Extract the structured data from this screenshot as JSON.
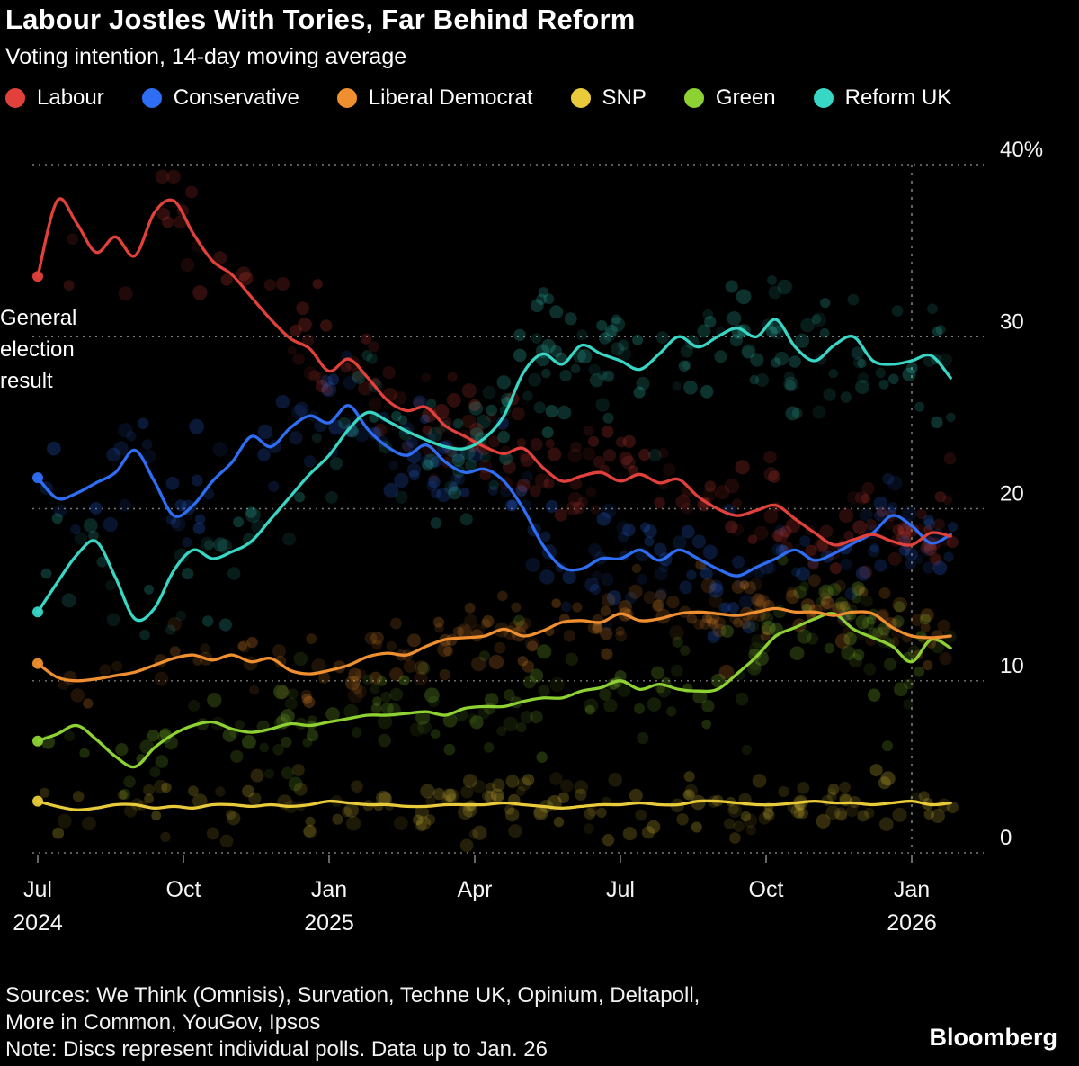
{
  "header": {
    "title": "Labour Jostles With Tories, Far Behind Reform",
    "subtitle": "Voting intention, 14-day moving average"
  },
  "annotation": {
    "lines": [
      "General",
      "election",
      "result"
    ]
  },
  "footer": {
    "sources_line1": "Sources: We Think (Omnisis), Survation, Techne UK, Opinium, Deltapoll,",
    "sources_line2": "More in Common, YouGov, Ipsos",
    "note": "Note: Discs represent individual polls. Data up to Jan. 26",
    "logo": "Bloomberg"
  },
  "chart_data": {
    "type": "line",
    "scatter_overlay": true,
    "scatter_note": "Discs represent individual polls",
    "title": "Labour Jostles With Tories, Far Behind Reform",
    "subtitle": "Voting intention, 14-day moving average",
    "units": "%",
    "grid": "horizontal-dotted",
    "legend_position": "top",
    "ylim": [
      0,
      40
    ],
    "xlim_months": [
      0,
      19.4
    ],
    "event_line_x": 18,
    "x_unit": "months since Jul 2024",
    "x": [
      0,
      0.4,
      0.8,
      1.2,
      1.6,
      2.0,
      2.4,
      2.8,
      3.2,
      3.6,
      4.0,
      4.4,
      4.8,
      5.2,
      5.6,
      6.0,
      6.4,
      6.8,
      7.2,
      7.6,
      8.0,
      8.4,
      8.8,
      9.2,
      9.6,
      10.0,
      10.4,
      10.8,
      11.2,
      11.6,
      12.0,
      12.4,
      12.8,
      13.2,
      13.6,
      14.0,
      14.4,
      14.8,
      15.2,
      15.6,
      16.0,
      16.4,
      16.8,
      17.2,
      17.6,
      18.0,
      18.4,
      18.8
    ],
    "x_ticks": [
      {
        "x": 0,
        "label": "Jul",
        "sublabel": "2024"
      },
      {
        "x": 3,
        "label": "Oct"
      },
      {
        "x": 6,
        "label": "Jan",
        "sublabel": "2025"
      },
      {
        "x": 9,
        "label": "Apr"
      },
      {
        "x": 12,
        "label": "Jul"
      },
      {
        "x": 15,
        "label": "Oct"
      },
      {
        "x": 18,
        "label": "Jan",
        "sublabel": "2026"
      }
    ],
    "y_ticks": [
      {
        "value": 0,
        "label": "0"
      },
      {
        "value": 10,
        "label": "10"
      },
      {
        "value": 20,
        "label": "20"
      },
      {
        "value": 30,
        "label": "30"
      },
      {
        "value": 40,
        "label": "40%"
      }
    ],
    "series": [
      {
        "name": "Labour",
        "color": "#e1413a",
        "scatter_sigma": 1.5,
        "scatter_count": 185,
        "values": [
          33.5,
          37.9,
          36.6,
          34.9,
          35.8,
          34.7,
          37.2,
          37.9,
          36.0,
          34.4,
          33.6,
          32.3,
          31.0,
          29.9,
          29.3,
          28.0,
          28.7,
          27.6,
          26.3,
          25.7,
          25.9,
          24.8,
          24.2,
          23.6,
          23.2,
          23.5,
          22.4,
          21.6,
          21.9,
          22.1,
          21.6,
          22.0,
          21.5,
          21.7,
          20.7,
          20.0,
          19.6,
          19.9,
          20.2,
          19.4,
          18.6,
          17.9,
          18.2,
          18.5,
          18.1,
          17.9,
          18.6,
          18.4
        ]
      },
      {
        "name": "Conservative",
        "color": "#2e6ef5",
        "scatter_sigma": 1.5,
        "scatter_count": 185,
        "values": [
          21.8,
          20.6,
          20.9,
          21.5,
          22.1,
          23.4,
          21.6,
          19.6,
          20.2,
          21.6,
          22.7,
          24.2,
          23.6,
          24.7,
          25.4,
          25.0,
          26.0,
          24.6,
          23.6,
          23.1,
          23.7,
          22.7,
          22.1,
          22.3,
          21.6,
          20.0,
          17.9,
          16.6,
          16.5,
          17.1,
          17.1,
          17.6,
          17.0,
          17.6,
          17.1,
          16.5,
          16.1,
          16.6,
          17.1,
          17.6,
          17.0,
          17.4,
          18.0,
          18.6,
          19.6,
          19.0,
          18.0,
          18.5
        ]
      },
      {
        "name": "Liberal Democrat",
        "color": "#ef8f2f",
        "scatter_sigma": 1.1,
        "scatter_count": 180,
        "values": [
          11.0,
          10.2,
          10.0,
          10.1,
          10.3,
          10.5,
          10.9,
          11.3,
          11.5,
          11.2,
          11.5,
          11.1,
          11.3,
          10.6,
          10.4,
          10.6,
          10.9,
          11.4,
          11.6,
          11.5,
          12.0,
          12.4,
          12.5,
          12.6,
          13.0,
          12.6,
          12.9,
          13.4,
          13.5,
          13.4,
          13.9,
          13.5,
          13.6,
          13.9,
          14.0,
          13.9,
          13.8,
          14.0,
          14.2,
          14.0,
          14.0,
          13.8,
          14.0,
          13.9,
          13.1,
          12.6,
          12.5,
          12.6
        ]
      },
      {
        "name": "SNP",
        "color": "#e8ca3a",
        "scatter_sigma": 0.9,
        "scatter_count": 165,
        "values": [
          3.0,
          2.7,
          2.5,
          2.6,
          2.8,
          2.8,
          2.6,
          2.7,
          2.6,
          2.8,
          2.8,
          2.7,
          2.8,
          2.7,
          2.8,
          3.0,
          2.9,
          2.8,
          2.8,
          2.7,
          2.7,
          2.8,
          2.8,
          2.8,
          2.9,
          2.8,
          2.7,
          2.6,
          2.7,
          2.8,
          2.8,
          2.9,
          2.8,
          2.8,
          3.0,
          3.0,
          2.9,
          2.8,
          2.8,
          2.9,
          3.0,
          2.9,
          2.9,
          2.8,
          2.9,
          3.0,
          2.8,
          2.9
        ]
      },
      {
        "name": "Green",
        "color": "#8ed133",
        "scatter_sigma": 1.6,
        "scatter_count": 180,
        "values": [
          6.5,
          6.9,
          7.4,
          6.6,
          5.6,
          5.0,
          6.1,
          6.9,
          7.4,
          7.6,
          7.2,
          7.0,
          7.2,
          7.5,
          7.4,
          7.6,
          7.8,
          8.0,
          8.0,
          8.1,
          8.2,
          8.0,
          8.4,
          8.5,
          8.5,
          8.8,
          9.0,
          9.0,
          9.4,
          9.6,
          10.0,
          9.5,
          9.8,
          9.5,
          9.4,
          9.5,
          10.4,
          11.4,
          12.6,
          13.1,
          13.6,
          13.9,
          13.0,
          12.5,
          12.0,
          11.1,
          12.4,
          11.9
        ]
      },
      {
        "name": "Reform UK",
        "color": "#38d6c4",
        "scatter_sigma": 2.0,
        "scatter_count": 190,
        "values": [
          14.0,
          15.7,
          17.3,
          18.1,
          16.0,
          13.6,
          14.2,
          16.4,
          17.6,
          17.1,
          17.5,
          18.1,
          19.4,
          20.7,
          22.0,
          23.1,
          24.6,
          25.6,
          25.1,
          24.5,
          24.0,
          23.6,
          23.5,
          24.1,
          25.4,
          27.9,
          29.0,
          28.4,
          29.5,
          29.0,
          28.6,
          28.1,
          29.0,
          30.0,
          29.4,
          30.0,
          30.5,
          30.0,
          31.0,
          29.4,
          28.6,
          29.5,
          30.0,
          28.6,
          28.4,
          28.6,
          28.9,
          27.6
        ]
      }
    ]
  }
}
